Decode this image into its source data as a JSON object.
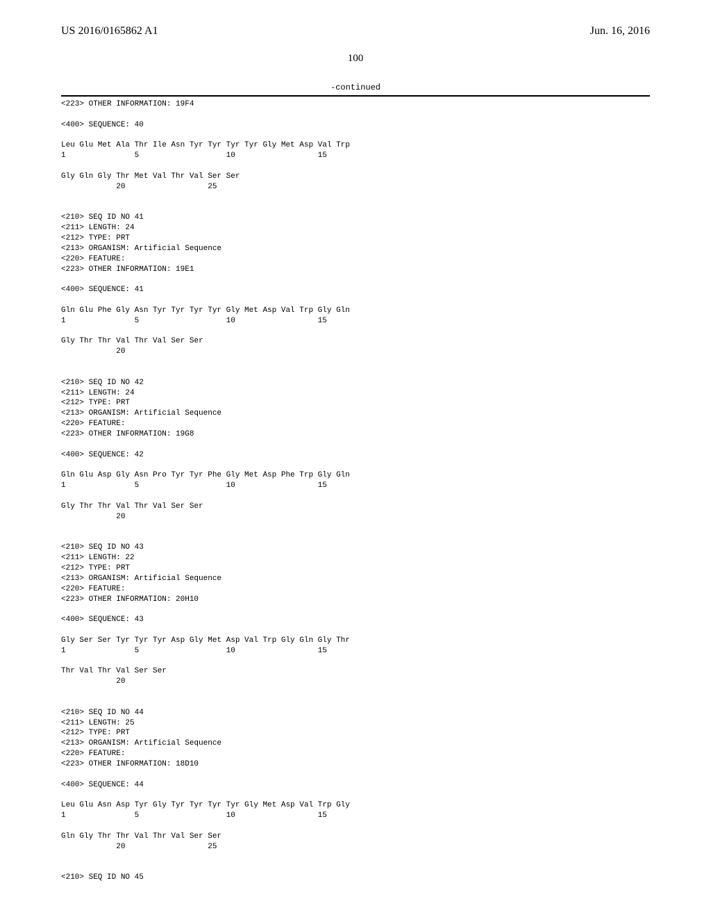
{
  "header": {
    "publication_id": "US 2016/0165862 A1",
    "date": "Jun. 16, 2016"
  },
  "page_number": "100",
  "continued_label": "-continued",
  "listing": "<223> OTHER INFORMATION: 19F4\n\n<400> SEQUENCE: 40\n\nLeu Glu Met Ala Thr Ile Asn Tyr Tyr Tyr Tyr Gly Met Asp Val Trp\n1               5                   10                  15\n\nGly Gln Gly Thr Met Val Thr Val Ser Ser\n            20                  25\n\n\n<210> SEQ ID NO 41\n<211> LENGTH: 24\n<212> TYPE: PRT\n<213> ORGANISM: Artificial Sequence\n<220> FEATURE:\n<223> OTHER INFORMATION: 19E1\n\n<400> SEQUENCE: 41\n\nGln Glu Phe Gly Asn Tyr Tyr Tyr Tyr Gly Met Asp Val Trp Gly Gln\n1               5                   10                  15\n\nGly Thr Thr Val Thr Val Ser Ser\n            20\n\n\n<210> SEQ ID NO 42\n<211> LENGTH: 24\n<212> TYPE: PRT\n<213> ORGANISM: Artificial Sequence\n<220> FEATURE:\n<223> OTHER INFORMATION: 19G8\n\n<400> SEQUENCE: 42\n\nGln Glu Asp Gly Asn Pro Tyr Tyr Phe Gly Met Asp Phe Trp Gly Gln\n1               5                   10                  15\n\nGly Thr Thr Val Thr Val Ser Ser\n            20\n\n\n<210> SEQ ID NO 43\n<211> LENGTH: 22\n<212> TYPE: PRT\n<213> ORGANISM: Artificial Sequence\n<220> FEATURE:\n<223> OTHER INFORMATION: 20H10\n\n<400> SEQUENCE: 43\n\nGly Ser Ser Tyr Tyr Tyr Asp Gly Met Asp Val Trp Gly Gln Gly Thr\n1               5                   10                  15\n\nThr Val Thr Val Ser Ser\n            20\n\n\n<210> SEQ ID NO 44\n<211> LENGTH: 25\n<212> TYPE: PRT\n<213> ORGANISM: Artificial Sequence\n<220> FEATURE:\n<223> OTHER INFORMATION: 18D10\n\n<400> SEQUENCE: 44\n\nLeu Glu Asn Asp Tyr Gly Tyr Tyr Tyr Tyr Gly Met Asp Val Trp Gly\n1               5                   10                  15\n\nGln Gly Thr Thr Val Thr Val Ser Ser\n            20                  25\n\n\n<210> SEQ ID NO 45"
}
